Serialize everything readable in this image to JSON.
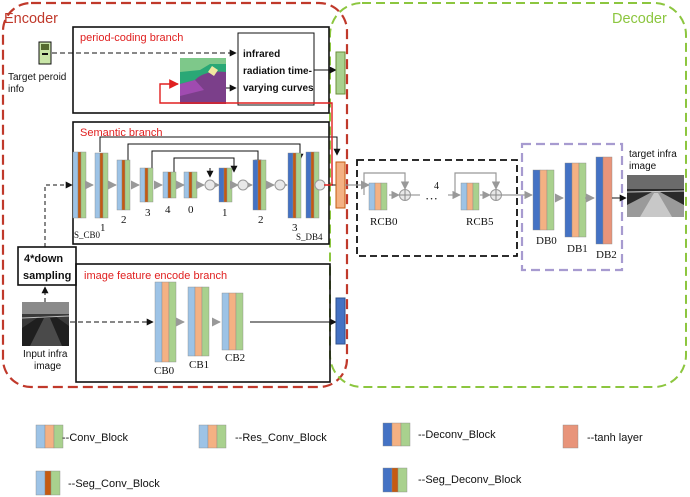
{
  "encoder": {
    "label": "Encoder",
    "color": "#c0392b"
  },
  "decoder": {
    "label": "Decoder",
    "color": "#8cc63f"
  },
  "period_branch": {
    "title": "period-coding branch",
    "curve_label_lines": [
      "infrared",
      "radiation time-",
      "varying curves"
    ]
  },
  "target_period": {
    "lines": [
      "Target peroid",
      "info"
    ]
  },
  "semantic_branch": {
    "title": "Semantic branch",
    "labels": {
      "s_cb0": "S_CB0",
      "l1": "1",
      "l2": "2",
      "l3": "3",
      "l4": "4",
      "l0": "0",
      "r1": "1",
      "r2": "2",
      "r3": "3",
      "s_db4": "S_DB4"
    }
  },
  "down_sampling": {
    "lines": [
      "4*down",
      "sampling"
    ]
  },
  "image_branch": {
    "title": "image feature encode branch",
    "labels": [
      "CB0",
      "CB1",
      "CB2"
    ]
  },
  "input_image": {
    "lines": [
      "Input infra",
      "image"
    ]
  },
  "rcb": {
    "labels": [
      "RCB0",
      "RCB5"
    ],
    "count": "4",
    "dots": "···"
  },
  "decoder_blocks": {
    "labels": [
      "DB0",
      "DB1",
      "DB2"
    ]
  },
  "target_image": {
    "lines": [
      "target infra",
      "image"
    ]
  },
  "legend": {
    "items": [
      "--Conv_Block",
      "--Res_Conv_Block",
      "--Deconv_Block",
      "--tanh layer",
      "--Seg_Conv_Block",
      "--Seg_Deconv_Block"
    ]
  },
  "colors": {
    "blue": "#9dc3e6",
    "orange": "#f4b183",
    "green": "#a9d18e",
    "darkblue": "#4472c4",
    "darkorange": "#c55a11",
    "salmon": "#e8947a"
  }
}
